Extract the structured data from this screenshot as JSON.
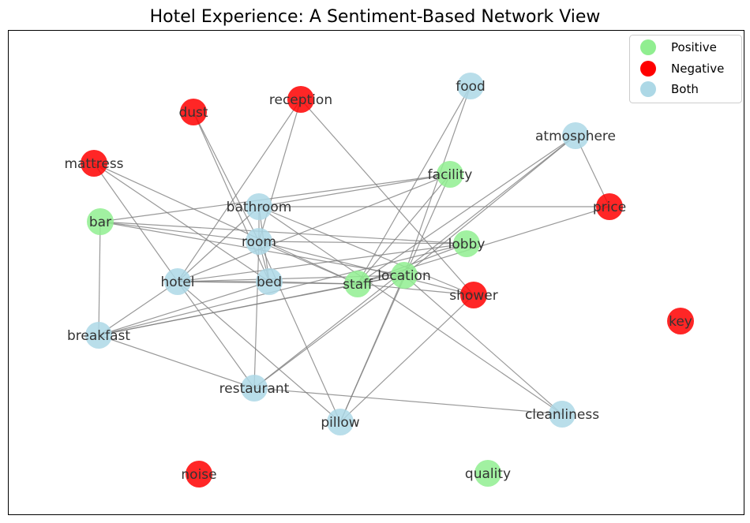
{
  "title": "Hotel Experience: A Sentiment-Based Network View",
  "legend": [
    {
      "label": "Positive"
    },
    {
      "label": "Negative"
    },
    {
      "label": "Both"
    }
  ],
  "colors": {
    "Positive": "#90ee90",
    "Negative": "#ff0000",
    "Both": "#add8e6",
    "edge": "#808080",
    "label": "#333333"
  },
  "nodes": [
    {
      "label": "food",
      "sentiment": "Both"
    },
    {
      "label": "reception",
      "sentiment": "Negative"
    },
    {
      "label": "dust",
      "sentiment": "Negative"
    },
    {
      "label": "atmosphere",
      "sentiment": "Both"
    },
    {
      "label": "mattress",
      "sentiment": "Negative"
    },
    {
      "label": "facility",
      "sentiment": "Positive"
    },
    {
      "label": "bathroom",
      "sentiment": "Both"
    },
    {
      "label": "price",
      "sentiment": "Negative"
    },
    {
      "label": "bar",
      "sentiment": "Positive"
    },
    {
      "label": "room",
      "sentiment": "Both"
    },
    {
      "label": "lobby",
      "sentiment": "Positive"
    },
    {
      "label": "location",
      "sentiment": "Positive"
    },
    {
      "label": "hotel",
      "sentiment": "Both"
    },
    {
      "label": "bed",
      "sentiment": "Both"
    },
    {
      "label": "staff",
      "sentiment": "Positive"
    },
    {
      "label": "shower",
      "sentiment": "Negative"
    },
    {
      "label": "key",
      "sentiment": "Negative"
    },
    {
      "label": "breakfast",
      "sentiment": "Both"
    },
    {
      "label": "restaurant",
      "sentiment": "Both"
    },
    {
      "label": "cleanliness",
      "sentiment": "Both"
    },
    {
      "label": "pillow",
      "sentiment": "Both"
    },
    {
      "label": "noise",
      "sentiment": "Negative"
    },
    {
      "label": "quality",
      "sentiment": "Positive"
    }
  ],
  "edges": [
    [
      "food",
      "staff"
    ],
    [
      "food",
      "location"
    ],
    [
      "reception",
      "hotel"
    ],
    [
      "reception",
      "room"
    ],
    [
      "reception",
      "shower"
    ],
    [
      "dust",
      "room"
    ],
    [
      "dust",
      "bed"
    ],
    [
      "atmosphere",
      "price"
    ],
    [
      "atmosphere",
      "staff"
    ],
    [
      "atmosphere",
      "location"
    ],
    [
      "atmosphere",
      "restaurant"
    ],
    [
      "mattress",
      "hotel"
    ],
    [
      "mattress",
      "bed"
    ],
    [
      "mattress",
      "staff"
    ],
    [
      "facility",
      "bar"
    ],
    [
      "facility",
      "bathroom"
    ],
    [
      "facility",
      "hotel"
    ],
    [
      "facility",
      "pillow"
    ],
    [
      "facility",
      "staff"
    ],
    [
      "bathroom",
      "price"
    ],
    [
      "bathroom",
      "hotel"
    ],
    [
      "bathroom",
      "bed"
    ],
    [
      "bathroom",
      "shower"
    ],
    [
      "bathroom",
      "cleanliness"
    ],
    [
      "bathroom",
      "room"
    ],
    [
      "price",
      "staff"
    ],
    [
      "bar",
      "lobby"
    ],
    [
      "bar",
      "room"
    ],
    [
      "bar",
      "breakfast"
    ],
    [
      "bar",
      "location"
    ],
    [
      "room",
      "lobby"
    ],
    [
      "room",
      "shower"
    ],
    [
      "room",
      "staff"
    ],
    [
      "room",
      "pillow"
    ],
    [
      "room",
      "restaurant"
    ],
    [
      "room",
      "bed"
    ],
    [
      "lobby",
      "hotel"
    ],
    [
      "lobby",
      "staff"
    ],
    [
      "lobby",
      "breakfast"
    ],
    [
      "location",
      "hotel"
    ],
    [
      "location",
      "staff"
    ],
    [
      "location",
      "breakfast"
    ],
    [
      "location",
      "cleanliness"
    ],
    [
      "location",
      "restaurant"
    ],
    [
      "location",
      "pillow"
    ],
    [
      "hotel",
      "bed"
    ],
    [
      "hotel",
      "staff"
    ],
    [
      "hotel",
      "breakfast"
    ],
    [
      "hotel",
      "restaurant"
    ],
    [
      "hotel",
      "pillow"
    ],
    [
      "bed",
      "staff"
    ],
    [
      "bed",
      "breakfast"
    ],
    [
      "staff",
      "breakfast"
    ],
    [
      "staff",
      "shower"
    ],
    [
      "shower",
      "pillow"
    ],
    [
      "breakfast",
      "restaurant"
    ],
    [
      "restaurant",
      "cleanliness"
    ]
  ]
}
